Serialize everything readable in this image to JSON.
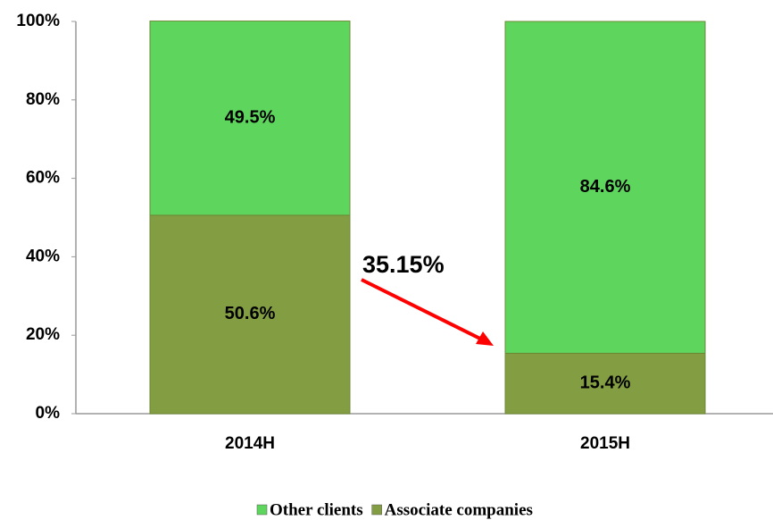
{
  "chart_data": {
    "type": "stacked_bar",
    "categories": [
      "2014H",
      "2015H"
    ],
    "series": [
      {
        "name": "Associate companies",
        "color": "#839d42",
        "values": [
          50.6,
          15.4
        ],
        "value_labels": [
          "50.6%",
          "15.4%"
        ]
      },
      {
        "name": "Other clients",
        "color": "#5ed65e",
        "values": [
          49.5,
          84.6
        ],
        "value_labels": [
          "49.5%",
          "84.6%"
        ]
      }
    ],
    "legend_order": [
      1,
      0
    ],
    "annotation": "35.15%",
    "ylim": [
      0,
      100
    ],
    "yticks": [
      {
        "value": 0,
        "label": "0%"
      },
      {
        "value": 20,
        "label": "20%"
      },
      {
        "value": 40,
        "label": "40%"
      },
      {
        "value": 60,
        "label": "60%"
      },
      {
        "value": 80,
        "label": "80%"
      },
      {
        "value": 100,
        "label": "100%"
      }
    ],
    "grid": false
  }
}
